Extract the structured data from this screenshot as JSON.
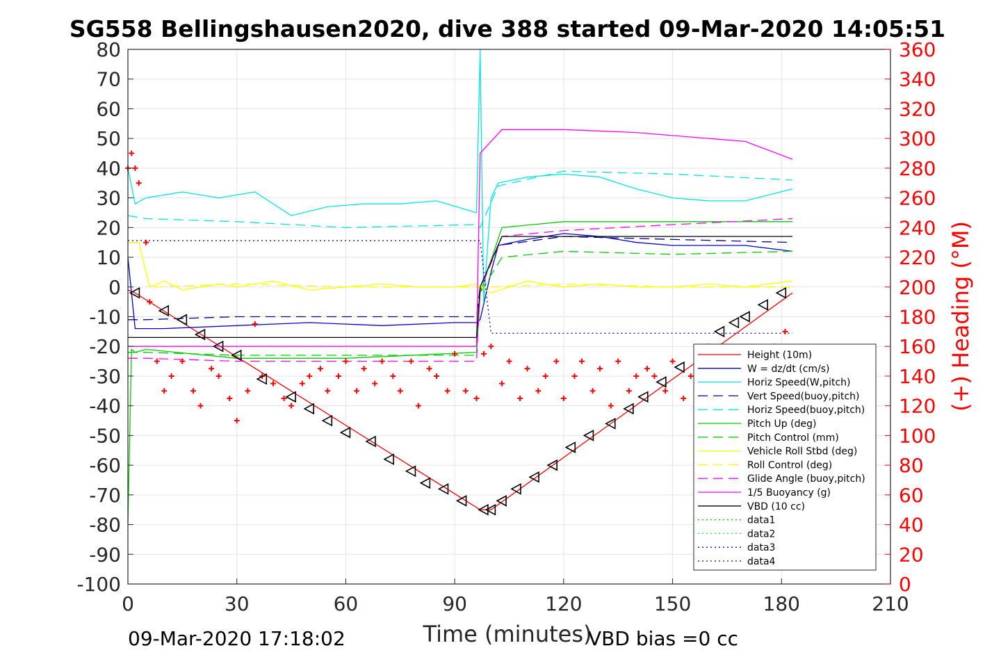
{
  "chart_data": {
    "type": "line",
    "title": "SG558 Bellingshausen2020, dive 388 started 09-Mar-2020 14:05:51",
    "xlabel": "Time (minutes)",
    "ylabel_right": "(+) Heading (°M)",
    "xlim": [
      0,
      210
    ],
    "ylim": [
      -100,
      80
    ],
    "ylim_right": [
      0,
      360
    ],
    "xticks": [
      "0",
      "30",
      "60",
      "90",
      "120",
      "150",
      "180",
      "210"
    ],
    "yticks_left": [
      "80",
      "70",
      "60",
      "50",
      "40",
      "30",
      "20",
      "10",
      "0",
      "-10",
      "-20",
      "-30",
      "-40",
      "-50",
      "-60",
      "-70",
      "-80",
      "-90",
      "-100"
    ],
    "yticks_right": [
      "360",
      "340",
      "320",
      "300",
      "280",
      "260",
      "240",
      "220",
      "200",
      "180",
      "160",
      "140",
      "120",
      "100",
      "80",
      "60",
      "40",
      "20",
      "0"
    ],
    "grid": true,
    "legend_position": "lower-right",
    "footer_left": "09-Mar-2020 17:18:02",
    "footer_right": "VBD bias =0 cc",
    "series": [
      {
        "name": "Height (10m)",
        "color": "#ff0000",
        "style": "solid",
        "x": [
          0,
          2,
          97,
          100,
          183
        ],
        "y": [
          -1,
          -2,
          -75,
          -75,
          -2
        ]
      },
      {
        "name": "W = dz/dt (cm/s)",
        "color": "#0000cc",
        "style": "solid",
        "x": [
          0,
          2,
          10,
          30,
          50,
          70,
          90,
          96,
          97,
          100,
          102,
          110,
          120,
          130,
          140,
          150,
          160,
          170,
          183
        ],
        "y": [
          10,
          -14,
          -14,
          -13,
          -12,
          -13,
          -12,
          -12,
          -11,
          5,
          14,
          16,
          18,
          17,
          15,
          14,
          14,
          14,
          12
        ]
      },
      {
        "name": "Horiz Speed(W,pitch)",
        "color": "#00e5e5",
        "style": "solid",
        "x": [
          0,
          2,
          5,
          15,
          25,
          35,
          45,
          55,
          65,
          75,
          85,
          96,
          97,
          98,
          100,
          102,
          110,
          120,
          130,
          140,
          150,
          160,
          170,
          183
        ],
        "y": [
          40,
          28,
          30,
          32,
          30,
          32,
          24,
          27,
          28,
          28,
          29,
          25,
          80,
          -5,
          30,
          35,
          37,
          38,
          37,
          33,
          30,
          29,
          29,
          33
        ]
      },
      {
        "name": "Vert Speed(buoy,pitch)",
        "color": "#000099",
        "style": "dashed",
        "x": [
          0,
          5,
          30,
          60,
          96,
          97,
          102,
          120,
          150,
          183
        ],
        "y": [
          -11,
          -11,
          -10,
          -10,
          -10,
          0,
          14,
          17,
          16,
          15
        ]
      },
      {
        "name": "Horiz Speed(buoy,pitch)",
        "color": "#00e5e5",
        "style": "dashed",
        "x": [
          0,
          5,
          30,
          60,
          96,
          97,
          102,
          120,
          150,
          183
        ],
        "y": [
          24,
          23,
          22,
          20,
          21,
          20,
          34,
          39,
          38,
          36
        ]
      },
      {
        "name": "Pitch Up (deg)",
        "color": "#00cc00",
        "style": "solid",
        "x": [
          0,
          1,
          2,
          5,
          30,
          60,
          96,
          97,
          103,
          120,
          150,
          183
        ],
        "y": [
          -80,
          -21,
          -22,
          -21,
          -24,
          -24,
          -22,
          -2,
          20,
          22,
          22,
          22
        ]
      },
      {
        "name": "Pitch Control (mm)",
        "color": "#00cc00",
        "style": "dashed",
        "x": [
          0,
          5,
          30,
          60,
          96,
          97,
          103,
          120,
          150,
          183
        ],
        "y": [
          -22,
          -22,
          -23,
          -23,
          -23,
          -2,
          10,
          12,
          11,
          12
        ]
      },
      {
        "name": "Vehicle Roll Stbd (deg)",
        "color": "#ffff00",
        "style": "solid",
        "x": [
          0,
          3,
          6,
          10,
          15,
          20,
          25,
          30,
          40,
          50,
          60,
          70,
          80,
          90,
          96,
          97,
          100,
          110,
          120,
          130,
          140,
          150,
          160,
          170,
          183
        ],
        "y": [
          15,
          15,
          0,
          2,
          -1,
          0,
          1,
          0,
          2,
          -1,
          0,
          1,
          0,
          0,
          1,
          0,
          -2,
          2,
          0,
          1,
          0,
          0,
          1,
          0,
          2
        ]
      },
      {
        "name": "Roll Control (deg)",
        "color": "#ffff00",
        "style": "dashed",
        "x": [
          0,
          3,
          6,
          30,
          60,
          90,
          97,
          100,
          120,
          150,
          183
        ],
        "y": [
          15,
          15,
          0,
          1,
          0,
          0,
          0,
          0,
          1,
          0,
          0
        ]
      },
      {
        "name": "Glide Angle (buoy,pitch)",
        "color": "#ff00ff",
        "style": "dashed",
        "x": [
          0,
          5,
          30,
          60,
          96,
          97,
          103,
          120,
          150,
          183
        ],
        "y": [
          -24,
          -24,
          -25,
          -25,
          -25,
          -1,
          17,
          19,
          21,
          23
        ]
      },
      {
        "name": "1/5 Buoyancy (g)",
        "color": "#ff00ff",
        "style": "solid",
        "x": [
          0,
          5,
          30,
          60,
          96,
          97,
          103,
          120,
          140,
          160,
          170,
          183
        ],
        "y": [
          -20,
          -20,
          -20,
          -20,
          -20,
          45,
          53,
          53,
          52,
          50,
          49,
          43
        ]
      },
      {
        "name": "VBD (10 cc)",
        "color": "#000000",
        "style": "solid",
        "x": [
          0,
          2,
          30,
          60,
          96,
          97,
          103,
          120,
          150,
          183
        ],
        "y": [
          -17,
          -17,
          -17,
          -17,
          -17,
          0,
          17,
          17,
          17,
          17
        ]
      },
      {
        "name": "data1",
        "color": "#00cc00",
        "style": "dotted",
        "x": [],
        "y": []
      },
      {
        "name": "data2",
        "color": "#00ff00",
        "style": "dotted",
        "x": [],
        "y": []
      },
      {
        "name": "data3",
        "color": "#0000aa",
        "style": "dotted",
        "x": [
          0,
          97,
          100,
          183
        ],
        "y": [
          15.6,
          15.6,
          -15.6,
          -15.6
        ]
      },
      {
        "name": "data4",
        "color": "#000099",
        "style": "dotted",
        "x": [],
        "y": []
      }
    ],
    "heading_series": {
      "color": "#ff0000",
      "marker": "+",
      "x": [
        0,
        1,
        2,
        3,
        5,
        6,
        8,
        10,
        12,
        15,
        18,
        20,
        23,
        25,
        28,
        30,
        33,
        35,
        37,
        40,
        43,
        45,
        48,
        50,
        53,
        55,
        58,
        60,
        63,
        65,
        68,
        70,
        73,
        75,
        78,
        80,
        83,
        85,
        88,
        90,
        93,
        96,
        98,
        100,
        103,
        105,
        108,
        110,
        113,
        115,
        118,
        120,
        123,
        125,
        128,
        130,
        133,
        135,
        138,
        140,
        143,
        145,
        148,
        150,
        153,
        155,
        158,
        160,
        163,
        165,
        168,
        170,
        173,
        175,
        178,
        181
      ],
      "y": [
        280,
        290,
        280,
        270,
        230,
        190,
        150,
        130,
        140,
        150,
        130,
        120,
        145,
        140,
        125,
        110,
        130,
        175,
        140,
        135,
        125,
        120,
        135,
        140,
        145,
        130,
        140,
        150,
        130,
        145,
        135,
        150,
        140,
        130,
        150,
        120,
        145,
        140,
        130,
        155,
        130,
        125,
        155,
        160,
        135,
        150,
        125,
        145,
        130,
        140,
        150,
        125,
        140,
        150,
        130,
        145,
        120,
        150,
        130,
        140,
        145,
        140,
        130,
        150,
        125,
        140,
        150,
        160,
        150,
        145,
        155,
        140,
        150,
        145,
        160,
        170
      ]
    },
    "markers": {
      "name": "triangles",
      "color": "#000000",
      "x": [
        2,
        10,
        15,
        20,
        25,
        30,
        37,
        45,
        50,
        55,
        60,
        67,
        72,
        78,
        82,
        87,
        92,
        98,
        100,
        103,
        107,
        112,
        117,
        122,
        127,
        133,
        138,
        142,
        147,
        152,
        158,
        163,
        167,
        170,
        175,
        180
      ],
      "y": [
        -2,
        -8,
        -11,
        -16,
        -20,
        -23,
        -31,
        -37,
        -41,
        -45,
        -49,
        -52,
        -58,
        -62,
        -66,
        -68,
        -72,
        -75,
        -75,
        -72,
        -68,
        -64,
        -60,
        -54,
        -50,
        -46,
        -41,
        -37,
        -32,
        -27,
        -21,
        -15,
        -12,
        -10,
        -6,
        -2
      ]
    }
  }
}
